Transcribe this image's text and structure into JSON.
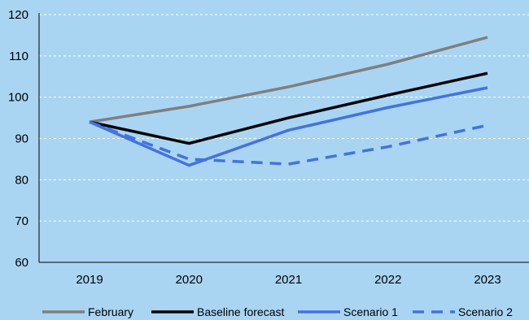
{
  "chart_data": {
    "type": "line",
    "title": "",
    "xlabel": "",
    "ylabel": "",
    "categories": [
      "2019",
      "2020",
      "2021",
      "2022",
      "2023"
    ],
    "ylim": [
      60,
      120
    ],
    "yticks": [
      60,
      70,
      80,
      90,
      100,
      110,
      120
    ],
    "grid": "horizontal-dashed",
    "legend_position": "bottom",
    "series": [
      {
        "name": "February",
        "values": [
          94,
          97.8,
          102.5,
          108,
          114.5
        ],
        "color": "#7f7f7f",
        "dash": "solid"
      },
      {
        "name": "Baseline forecast",
        "values": [
          94,
          88.8,
          95,
          100.5,
          105.8
        ],
        "color": "#000000",
        "dash": "solid"
      },
      {
        "name": "Scenario 1",
        "values": [
          94,
          83.5,
          92,
          97.5,
          102.3
        ],
        "color": "#4472e0",
        "dash": "solid"
      },
      {
        "name": "Scenario 2",
        "values": [
          94,
          85,
          83.8,
          88,
          93.2
        ],
        "color": "#4472e0",
        "dash": "dashed"
      }
    ]
  }
}
